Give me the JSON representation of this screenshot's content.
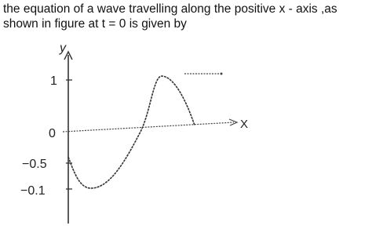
{
  "question": {
    "lines": [
      "the equation of a wave travelling along the positive x - axis ,as",
      "shown in figure at t = 0 is given by"
    ]
  },
  "figure": {
    "y_axis_label": "y",
    "x_axis_label": "X",
    "tick_labels": [
      "1",
      "0",
      "−0.5",
      "−0.1"
    ]
  }
}
